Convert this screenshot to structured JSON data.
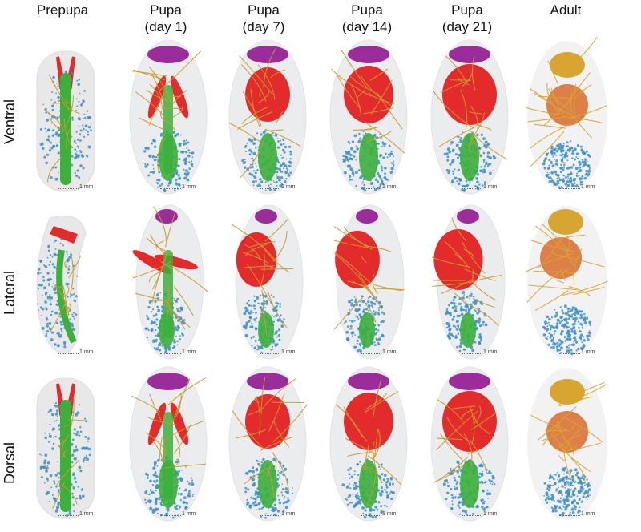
{
  "columns": [
    {
      "line1": "Prepupa",
      "line2": ""
    },
    {
      "line1": "Pupa",
      "line2": "(day 1)"
    },
    {
      "line1": "Pupa",
      "line2": "(day 7)"
    },
    {
      "line1": "Pupa",
      "line2": "(day 14)"
    },
    {
      "line1": "Pupa",
      "line2": "(day 21)"
    },
    {
      "line1": "Adult",
      "line2": ""
    }
  ],
  "rows": [
    "Ventral",
    "Lateral",
    "Dorsal"
  ],
  "scale_label": "1 mm",
  "colors": {
    "body": "#d9dadc",
    "brain": "#9b2d9b",
    "muscle": "#e42b2b",
    "gut": "#3bb03b",
    "fat": "#3c8fc8",
    "nerve": "#c99a2e",
    "adult_gold": "#d8a531",
    "adult_orange": "#d96b2a"
  }
}
